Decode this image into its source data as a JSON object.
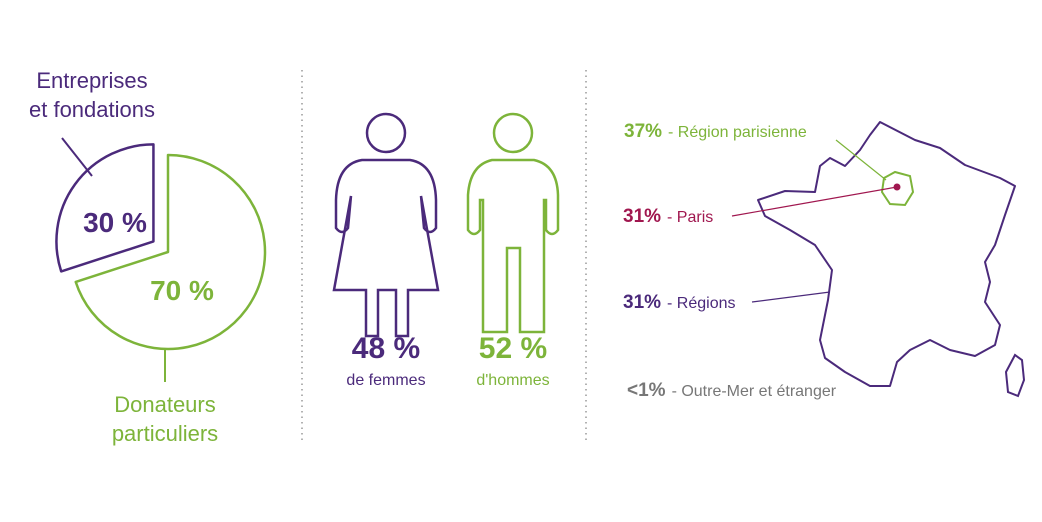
{
  "donors": {
    "pie": {
      "values": [
        30,
        70
      ],
      "value_labels": [
        "30 %",
        "70 %"
      ],
      "labels": [
        [
          "Entreprises",
          "et fondations"
        ],
        [
          "Donateurs",
          "particuliers"
        ]
      ],
      "colors": [
        "#4b2a7b",
        "#7db43a"
      ]
    }
  },
  "gender": [
    {
      "value_label": "48 %",
      "label": "de femmes",
      "color": "#4b2a7b"
    },
    {
      "value_label": "52 %",
      "label": "d'hommes",
      "color": "#7db43a"
    }
  ],
  "origin": [
    {
      "value_label": "37%",
      "label": "- Région parisienne",
      "color": "#7db43a"
    },
    {
      "value_label": "31%",
      "label": "- Paris",
      "color": "#a0174f"
    },
    {
      "value_label": "31%",
      "label": "- Régions",
      "color": "#4b2a7b"
    },
    {
      "value_label": "<1%",
      "label": "- Outre-Mer et étranger",
      "color": "#777777"
    }
  ]
}
